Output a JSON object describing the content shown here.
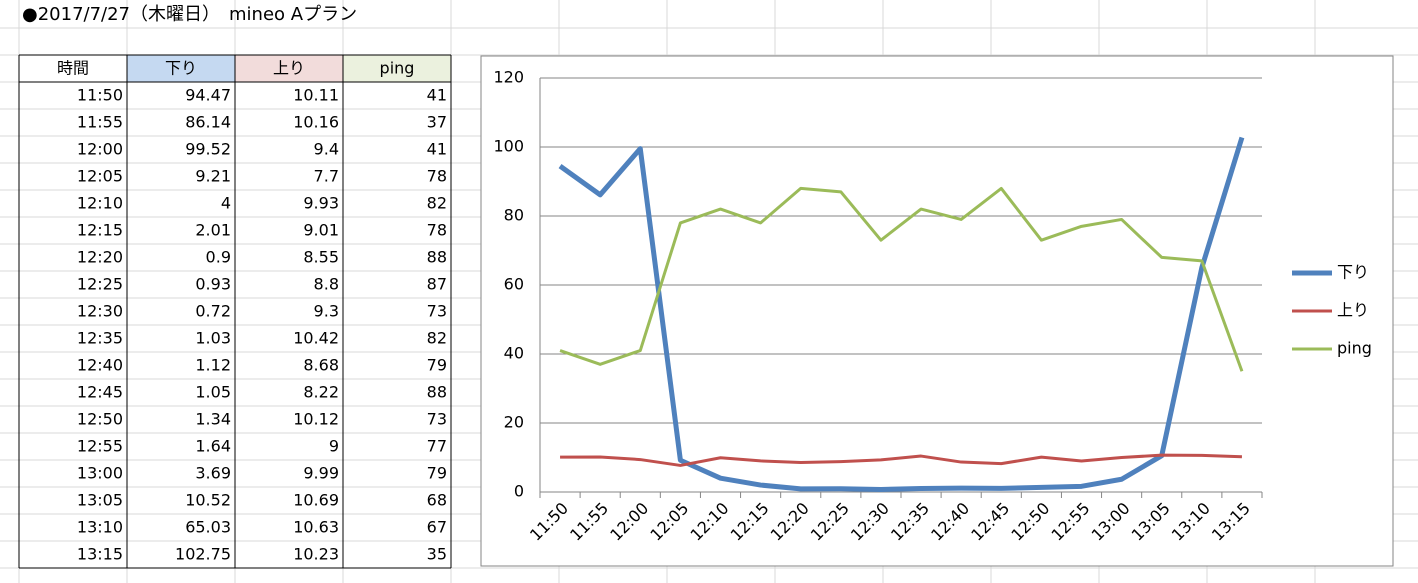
{
  "title": "●2017/7/27（木曜日）　mineo Aプラン",
  "table_header": "時間",
  "chart_data": {
    "type": "line",
    "categories": [
      "11:50",
      "11:55",
      "12:00",
      "12:05",
      "12:10",
      "12:15",
      "12:20",
      "12:25",
      "12:30",
      "12:35",
      "12:40",
      "12:45",
      "12:50",
      "12:55",
      "13:00",
      "13:05",
      "13:10",
      "13:15"
    ],
    "series": [
      {
        "name": "下り",
        "color": "#4f81bd",
        "values": [
          94.47,
          86.14,
          99.52,
          9.21,
          4,
          2.01,
          0.9,
          0.93,
          0.72,
          1.03,
          1.12,
          1.05,
          1.34,
          1.64,
          3.69,
          10.52,
          65.03,
          102.75
        ]
      },
      {
        "name": "上り",
        "color": "#c0504d",
        "values": [
          10.11,
          10.16,
          9.4,
          7.7,
          9.93,
          9.01,
          8.55,
          8.8,
          9.3,
          10.42,
          8.68,
          8.22,
          10.12,
          9,
          9.99,
          10.69,
          10.63,
          10.23
        ]
      },
      {
        "name": "ping",
        "color": "#9bbb59",
        "values": [
          41,
          37,
          41,
          78,
          82,
          78,
          88,
          87,
          73,
          82,
          79,
          88,
          73,
          77,
          79,
          68,
          67,
          35
        ]
      }
    ],
    "ylim": [
      0,
      120
    ],
    "yticks": [
      0,
      20,
      40,
      60,
      80,
      100,
      120
    ],
    "grid": true,
    "legend": "right"
  }
}
